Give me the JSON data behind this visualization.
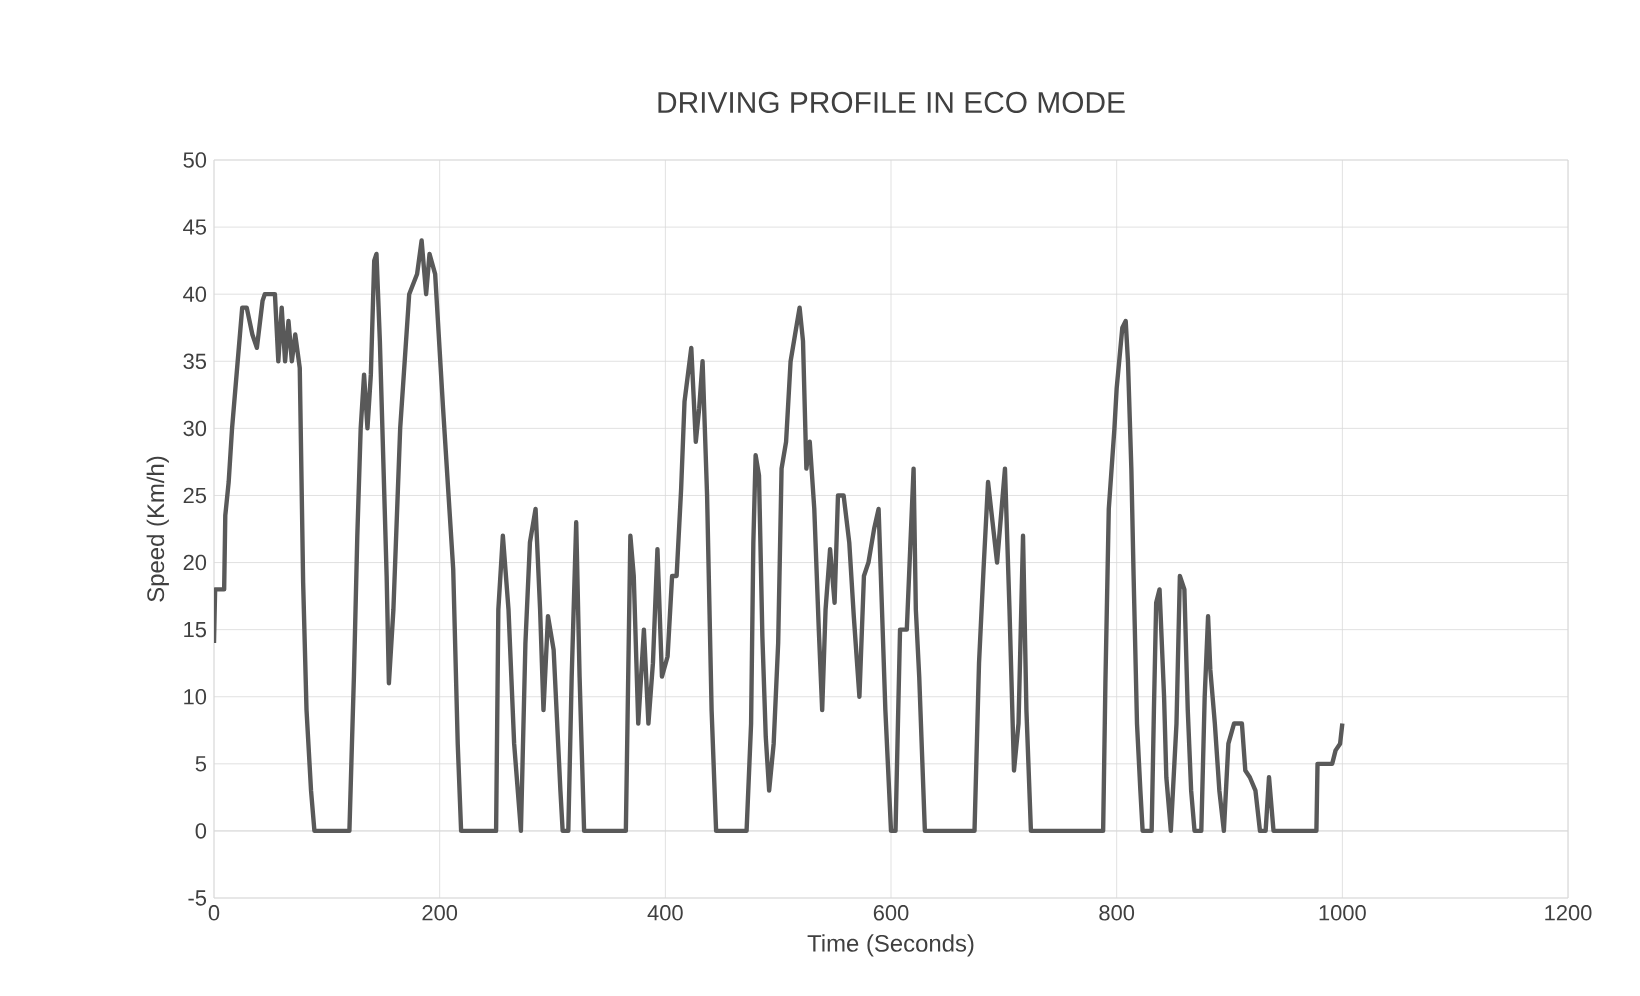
{
  "chart_data": {
    "type": "line",
    "title": "DRIVING PROFILE IN ECO MODE",
    "xlabel": "Time (Seconds)",
    "ylabel": "Speed (Km/h)",
    "x": [
      0,
      1,
      9,
      10,
      13,
      16,
      21,
      25,
      29,
      34,
      38,
      43,
      45,
      54,
      57,
      60,
      63,
      66,
      69,
      72,
      76,
      79,
      82,
      86,
      89,
      120,
      124,
      127,
      130,
      133,
      136,
      139,
      142,
      144,
      147,
      153,
      155,
      159,
      165,
      173,
      180,
      184,
      188,
      191,
      196,
      203,
      212,
      216,
      219,
      250,
      252,
      256,
      261,
      266,
      272,
      276,
      280,
      285,
      289,
      292,
      296,
      301,
      307,
      309,
      314,
      317,
      321,
      324,
      328,
      365,
      369,
      372,
      376,
      381,
      385,
      389,
      393,
      397,
      402,
      406,
      410,
      414,
      417,
      423,
      427,
      430,
      433,
      437,
      441,
      445,
      472,
      476,
      478,
      480,
      483,
      486,
      489,
      492,
      496,
      500,
      503,
      507,
      511,
      515,
      519,
      522,
      525,
      528,
      532,
      536,
      539,
      542,
      546,
      550,
      553,
      558,
      563,
      567,
      572,
      576,
      580,
      585,
      589,
      592,
      595,
      600,
      604,
      608,
      614,
      617,
      620,
      622,
      625,
      630,
      674,
      678,
      682,
      686,
      690,
      694,
      697,
      701,
      705,
      709,
      713,
      717,
      720,
      724,
      788,
      790,
      793,
      798,
      800,
      805,
      808,
      810,
      813,
      815,
      818,
      821,
      823,
      831,
      833,
      835,
      838,
      842,
      844,
      848,
      853,
      856,
      860,
      863,
      866,
      869,
      875,
      878,
      881,
      883,
      887,
      891,
      895,
      899,
      904,
      911,
      914,
      918,
      923,
      927,
      932,
      935,
      939,
      977,
      978,
      991,
      994,
      998,
      1000
    ],
    "values": [
      14,
      18,
      18,
      23.5,
      26,
      30,
      35,
      39,
      39,
      37,
      36,
      39.5,
      40,
      40,
      35,
      39,
      35,
      38,
      35,
      37,
      34.5,
      18.5,
      9,
      3,
      0,
      0,
      11.5,
      22,
      30,
      34,
      30,
      34,
      42.5,
      43,
      36.5,
      19,
      11,
      16.5,
      30,
      40,
      41.5,
      44,
      40,
      43,
      41.5,
      31.5,
      19.5,
      6.5,
      0,
      0,
      16.5,
      22,
      16.5,
      6.5,
      0,
      14,
      21.5,
      24,
      16.5,
      9,
      16,
      13.5,
      3,
      0,
      0,
      11.5,
      23,
      11.5,
      0,
      0,
      22,
      19,
      8,
      15,
      8,
      12.5,
      21,
      11.5,
      13,
      19,
      19,
      25.5,
      32,
      36,
      29,
      31.5,
      35,
      25,
      9,
      0,
      0,
      8,
      21.5,
      28,
      26.5,
      14.5,
      7,
      3,
      6.5,
      14,
      27,
      29,
      35,
      37,
      39,
      36.5,
      27,
      29,
      24,
      15,
      9,
      16.5,
      21,
      17,
      25,
      25,
      21.5,
      16,
      10,
      19,
      20,
      22.5,
      24,
      16.5,
      9,
      0,
      0,
      15,
      15,
      21,
      27,
      16.5,
      11.5,
      0,
      0,
      12.5,
      19.5,
      26,
      23,
      20,
      23,
      27,
      16.5,
      4.5,
      8,
      22,
      9,
      0,
      0,
      11,
      24,
      30,
      33,
      37.5,
      38,
      35,
      27,
      19,
      8,
      3,
      0,
      0,
      9,
      17,
      18,
      10,
      4,
      0,
      8,
      19,
      18,
      9,
      3,
      0,
      0,
      10,
      16,
      12,
      8,
      3,
      0,
      6.5,
      8,
      8,
      4.5,
      4,
      3,
      0,
      0,
      4,
      0,
      0,
      5,
      5,
      6,
      6.5,
      8
    ],
    "color": "#595959",
    "marker": "none",
    "line_style": "solid",
    "xlim": [
      0,
      1200
    ],
    "xticks": [
      0,
      200,
      400,
      600,
      800,
      1000,
      1200
    ],
    "ylim": [
      -5,
      50
    ],
    "yticks": [
      -5,
      0,
      5,
      10,
      15,
      20,
      25,
      30,
      35,
      40,
      45,
      50
    ],
    "grid": true
  }
}
